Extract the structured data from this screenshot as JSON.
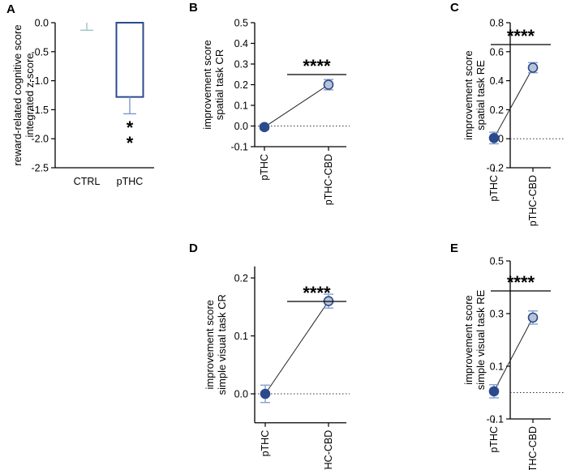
{
  "colors": {
    "bar_edge": "#2b4a8e",
    "ctrl_whisker": "#9cc3c0",
    "ptch_whisker": "#7d98c8",
    "dot_dark": "#2b4a8e",
    "dot_light": "#b9c3d6",
    "axis": "#000000"
  },
  "chart_data": [
    {
      "panel": "A",
      "type": "bar",
      "ylabel_lines": [
        "reward-related cognitive score",
        "integrated z-score"
      ],
      "categories": [
        "CTRL",
        "pTHC"
      ],
      "values": [
        0.0,
        -1.28
      ],
      "errors": [
        0.13,
        0.29
      ],
      "ylim": [
        -2.5,
        0.0
      ],
      "yticks": [
        "0.0",
        "-0.5",
        "-1.0",
        "-1.5",
        "-2.0",
        "-2.5"
      ],
      "significance": [
        "*",
        "*"
      ]
    },
    {
      "panel": "B",
      "type": "line",
      "ylabel_lines": [
        "improvement score",
        "spatial task CR"
      ],
      "categories": [
        "pTHC",
        "pTHC-CBD"
      ],
      "values": [
        -0.005,
        0.2
      ],
      "errors": [
        0.012,
        0.025
      ],
      "ylim": [
        -0.1,
        0.5
      ],
      "yticks": [
        "0.5",
        "0.4",
        "0.3",
        "0.2",
        "0.1",
        "0.0",
        "-0.1"
      ],
      "significance": "****"
    },
    {
      "panel": "C",
      "type": "line",
      "ylabel_lines": [
        "improvement score",
        "spatial task RE"
      ],
      "categories": [
        "pTHC",
        "pTHC-CBD"
      ],
      "values": [
        0.005,
        0.49
      ],
      "errors": [
        0.04,
        0.035
      ],
      "ylim": [
        -0.2,
        0.8
      ],
      "yticks": [
        "0.8",
        "0.6",
        "0.4",
        "0.2",
        "0.0",
        "-0.2"
      ],
      "significance": "****"
    },
    {
      "panel": "D",
      "type": "line",
      "ylabel_lines": [
        "improvement score",
        "simple visual task CR"
      ],
      "categories": [
        "pTHC",
        "pTHC-CBD"
      ],
      "values": [
        0.0,
        0.16
      ],
      "errors": [
        0.015,
        0.012
      ],
      "ylim": [
        -0.05,
        0.22
      ],
      "yticks": [
        "0.2",
        "0.1",
        "0.0"
      ],
      "significance": "****"
    },
    {
      "panel": "E",
      "type": "line",
      "ylabel_lines": [
        "improvement score",
        "simple visual task RE"
      ],
      "categories": [
        "pTHC",
        "pTHC-CBD"
      ],
      "values": [
        0.005,
        0.285
      ],
      "errors": [
        0.025,
        0.025
      ],
      "ylim": [
        -0.1,
        0.5
      ],
      "yticks": [
        "0.5",
        "0.3",
        "0.1",
        "-0.1"
      ],
      "significance": "****"
    }
  ]
}
